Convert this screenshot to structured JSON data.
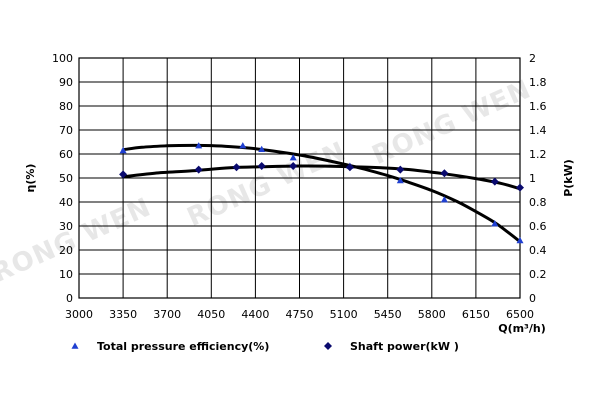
{
  "chart_data": {
    "type": "line",
    "title": "",
    "x": {
      "label": "Q(m³/h)",
      "range": [
        3000,
        6500
      ],
      "ticks": [
        3000,
        3350,
        3700,
        4050,
        4400,
        4750,
        5100,
        5450,
        5800,
        6150,
        6500
      ]
    },
    "y_left": {
      "label": "η(%)",
      "range": [
        0,
        100
      ],
      "ticks": [
        0,
        10,
        20,
        30,
        40,
        50,
        60,
        70,
        80,
        90,
        100
      ]
    },
    "y_right": {
      "label": "P(kW)",
      "range": [
        0,
        2
      ],
      "ticks": [
        "0",
        "0.2",
        "0.4",
        "0.6",
        "0.8",
        "1",
        "1.2",
        "1.4",
        "1.6",
        "1.8",
        "2"
      ]
    },
    "grid": true,
    "legend": "bottom",
    "series": [
      {
        "name": "Total pressure efficiency(%)",
        "axis": "left",
        "marker": "triangle",
        "marker_color": "#1f3fd1",
        "line_color": "#000000",
        "points": [
          [
            3350,
            61.5
          ],
          [
            3950,
            63.5
          ],
          [
            4300,
            63.5
          ],
          [
            4450,
            62
          ],
          [
            4700,
            58.5
          ],
          [
            5150,
            55
          ],
          [
            5550,
            49
          ],
          [
            5900,
            41
          ],
          [
            6300,
            31
          ],
          [
            6500,
            24
          ]
        ],
        "curve": [
          [
            3350,
            61.8
          ],
          [
            3500,
            62.8
          ],
          [
            3700,
            63.4
          ],
          [
            3900,
            63.6
          ],
          [
            4050,
            63.5
          ],
          [
            4200,
            63.1
          ],
          [
            4400,
            62.2
          ],
          [
            4600,
            60.8
          ],
          [
            4750,
            59.6
          ],
          [
            4900,
            58.1
          ],
          [
            5100,
            55.8
          ],
          [
            5300,
            53.2
          ],
          [
            5450,
            51.0
          ],
          [
            5600,
            48.5
          ],
          [
            5800,
            44.8
          ],
          [
            6000,
            40.2
          ],
          [
            6150,
            36.0
          ],
          [
            6300,
            31.4
          ],
          [
            6400,
            27.6
          ],
          [
            6500,
            23.5
          ]
        ]
      },
      {
        "name": "Shaft power(kW )",
        "axis": "right",
        "marker": "diamond",
        "marker_color": "#0a0a6e",
        "line_color": "#000000",
        "points": [
          [
            3350,
            1.03
          ],
          [
            3950,
            1.07
          ],
          [
            4250,
            1.09
          ],
          [
            4450,
            1.1
          ],
          [
            4700,
            1.1
          ],
          [
            5150,
            1.09
          ],
          [
            5550,
            1.07
          ],
          [
            5900,
            1.04
          ],
          [
            6300,
            0.97
          ],
          [
            6500,
            0.92
          ]
        ],
        "curve": [
          [
            3350,
            1.01
          ],
          [
            3600,
            1.04
          ],
          [
            3900,
            1.06
          ],
          [
            4200,
            1.085
          ],
          [
            4500,
            1.095
          ],
          [
            4750,
            1.1
          ],
          [
            5000,
            1.098
          ],
          [
            5300,
            1.09
          ],
          [
            5600,
            1.072
          ],
          [
            5900,
            1.035
          ],
          [
            6150,
            0.995
          ],
          [
            6350,
            0.955
          ],
          [
            6500,
            0.91
          ]
        ]
      }
    ],
    "watermarks": [
      "RONG WEN",
      "RONG WEN",
      "RONG WEN"
    ]
  }
}
